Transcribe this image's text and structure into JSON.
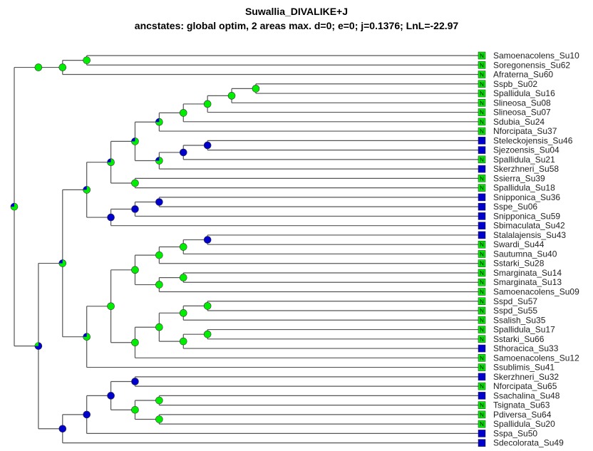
{
  "title": "Suwallia_DIVALIKE+J",
  "subtitle": "ancstates: global optim, 2 areas max. d=0; e=0; j=0.1376; LnL=-22.97",
  "colors": {
    "N": "#00ee00",
    "S": "#0000cc",
    "branch": "#555555",
    "tip_box_N": "#00ee00",
    "tip_box_S": "#0000cc"
  },
  "tips": [
    {
      "label": "Samoenacolens_Su10",
      "area": "N"
    },
    {
      "label": "Soregonensis_Su62",
      "area": "N"
    },
    {
      "label": "Afraterna_Su60",
      "area": "N"
    },
    {
      "label": "Sspb_Su02",
      "area": "N"
    },
    {
      "label": "Spallidula_Su16",
      "area": "N"
    },
    {
      "label": "Slineosa_Su08",
      "area": "N"
    },
    {
      "label": "Slineosa_Su07",
      "area": "N"
    },
    {
      "label": "Sdubia_Su24",
      "area": "N"
    },
    {
      "label": "Nforcipata_Su37",
      "area": "N"
    },
    {
      "label": "Steleckojensis_Su46",
      "area": "S"
    },
    {
      "label": "Sjezoensis_Su04",
      "area": "S"
    },
    {
      "label": "Spallidula_Su21",
      "area": "N"
    },
    {
      "label": "Skerzhneri_Su58",
      "area": "S"
    },
    {
      "label": "Ssierra_Su39",
      "area": "N"
    },
    {
      "label": "Spallidula_Su18",
      "area": "N"
    },
    {
      "label": "Snipponica_Su36",
      "area": "S"
    },
    {
      "label": "Sspe_Su06",
      "area": "S"
    },
    {
      "label": "Snipponica_Su59",
      "area": "S"
    },
    {
      "label": "Sbimaculata_Su42",
      "area": "S"
    },
    {
      "label": "Stalalajensis_Su43",
      "area": "S"
    },
    {
      "label": "Swardi_Su44",
      "area": "N"
    },
    {
      "label": "Sautumna_Su40",
      "area": "N"
    },
    {
      "label": "Sstarki_Su28",
      "area": "N"
    },
    {
      "label": "Smarginata_Su14",
      "area": "N"
    },
    {
      "label": "Smarginata_Su13",
      "area": "N"
    },
    {
      "label": "Samoenacolens_Su09",
      "area": "N"
    },
    {
      "label": "Sspd_Su57",
      "area": "N"
    },
    {
      "label": "Sspd_Su55",
      "area": "N"
    },
    {
      "label": "Ssalish_Su35",
      "area": "N"
    },
    {
      "label": "Spallidula_Su17",
      "area": "N"
    },
    {
      "label": "Sstarki_Su66",
      "area": "N"
    },
    {
      "label": "Sthoracica_Su33",
      "area": "S"
    },
    {
      "label": "Samoenacolens_Su12",
      "area": "N"
    },
    {
      "label": "Ssublimis_Su41",
      "area": "N"
    },
    {
      "label": "Skerzhneri_Su32",
      "area": "S"
    },
    {
      "label": "Nforcipata_Su65",
      "area": "N"
    },
    {
      "label": "Ssachalina_Su48",
      "area": "S"
    },
    {
      "label": "Tsignata_Su63",
      "area": "N"
    },
    {
      "label": "Pdiversa_Su64",
      "area": "N"
    },
    {
      "label": "Spallidula_Su20",
      "area": "N"
    },
    {
      "label": "Sspa_Su50",
      "area": "S"
    },
    {
      "label": "Sdecolorata_Su49",
      "area": "S"
    }
  ],
  "tree": {
    "name": "root",
    "state": "mix",
    "children": [
      {
        "state": "N",
        "children": [
          {
            "state": "N",
            "children": [
              {
                "state": "N",
                "children": [
                  {
                    "tip": 0
                  },
                  {
                    "tip": 1
                  }
                ]
              },
              {
                "tip": 2
              }
            ]
          }
        ]
      },
      {
        "state": "mixS",
        "children": [
          {
            "state": "mix",
            "children": [
              {
                "state": "mix",
                "children": [
                  {
                    "state": "mix",
                    "children": [
                      {
                        "state": "mix",
                        "children": [
                          {
                            "state": "mix",
                            "children": [
                              {
                                "state": "N",
                                "children": [
                                  {
                                    "state": "N",
                                    "children": [
                                      {
                                        "state": "N",
                                        "children": [
                                          {
                                            "state": "N",
                                            "children": [
                                              {
                                                "tip": 3
                                              },
                                              {
                                                "tip": 4
                                              }
                                            ]
                                          },
                                          {
                                            "tip": 5
                                          }
                                        ]
                                      },
                                      {
                                        "tip": 6
                                      }
                                    ]
                                  },
                                  {
                                    "tip": 7
                                  }
                                ]
                              },
                              {
                                "tip": 8
                              }
                            ]
                          },
                          {
                            "state": "mix",
                            "children": [
                              {
                                "state": "S",
                                "children": [
                                  {
                                    "state": "S",
                                    "children": [
                                      {
                                        "tip": 9
                                      },
                                      {
                                        "tip": 10
                                      }
                                    ]
                                  },
                                  {
                                    "tip": 11
                                  }
                                ]
                              },
                              {
                                "tip": 12
                              }
                            ]
                          }
                        ]
                      },
                      {
                        "state": "N",
                        "children": [
                          {
                            "tip": 13
                          },
                          {
                            "tip": 14
                          }
                        ]
                      }
                    ]
                  },
                  {
                    "state": "S",
                    "children": [
                      {
                        "state": "S",
                        "children": [
                          {
                            "state": "S",
                            "children": [
                              {
                                "tip": 15
                              },
                              {
                                "tip": 16
                              }
                            ]
                          },
                          {
                            "tip": 17
                          }
                        ]
                      },
                      {
                        "tip": 18
                      }
                    ]
                  }
                ]
              },
              {
                "state": "mix",
                "children": [
                  {
                    "state": "N",
                    "children": [
                      {
                        "state": "N",
                        "children": [
                          {
                            "state": "N",
                            "children": [
                              {
                                "state": "N",
                                "children": [
                                  {
                                    "state": "S",
                                    "children": [
                                      {
                                        "tip": 19
                                      },
                                      {
                                        "tip": 20
                                      }
                                    ]
                                  },
                                  {
                                    "tip": 21
                                  }
                                ]
                              },
                              {
                                "tip": 22
                              }
                            ]
                          },
                          {
                            "state": "N",
                            "children": [
                              {
                                "state": "N",
                                "children": [
                                  {
                                    "tip": 23
                                  },
                                  {
                                    "tip": 24
                                  }
                                ]
                              },
                              {
                                "tip": 25
                              }
                            ]
                          }
                        ]
                      },
                      {
                        "state": "N",
                        "children": [
                          {
                            "state": "N",
                            "children": [
                              {
                                "state": "N",
                                "children": [
                                  {
                                    "state": "N",
                                    "children": [
                                      {
                                        "tip": 26
                                      },
                                      {
                                        "tip": 27
                                      }
                                    ]
                                  },
                                  {
                                    "tip": 28
                                  }
                                ]
                              },
                              {
                                "state": "N",
                                "children": [
                                  {
                                    "state": "N",
                                    "children": [
                                      {
                                        "tip": 29
                                      },
                                      {
                                        "tip": 30
                                      }
                                    ]
                                  },
                                  {
                                    "tip": 31
                                  }
                                ]
                              }
                            ]
                          },
                          {
                            "tip": 32
                          }
                        ]
                      }
                    ]
                  },
                  {
                    "tip": 33
                  }
                ]
              }
            ]
          },
          {
            "state": "S",
            "children": [
              {
                "state": "S",
                "children": [
                  {
                    "state": "S",
                    "children": [
                      {
                        "state": "S",
                        "children": [
                          {
                            "tip": 34
                          },
                          {
                            "tip": 35
                          }
                        ]
                      },
                      {
                        "state": "N",
                        "children": [
                          {
                            "state": "N",
                            "children": [
                              {
                                "tip": 36
                              },
                              {
                                "tip": 37
                              }
                            ]
                          },
                          {
                            "state": "N",
                            "children": [
                              {
                                "tip": 38
                              },
                              {
                                "tip": 39
                              }
                            ]
                          }
                        ]
                      }
                    ]
                  },
                  {
                    "tip": 40
                  }
                ]
              },
              {
                "tip": 41
              }
            ]
          }
        ]
      }
    ]
  }
}
